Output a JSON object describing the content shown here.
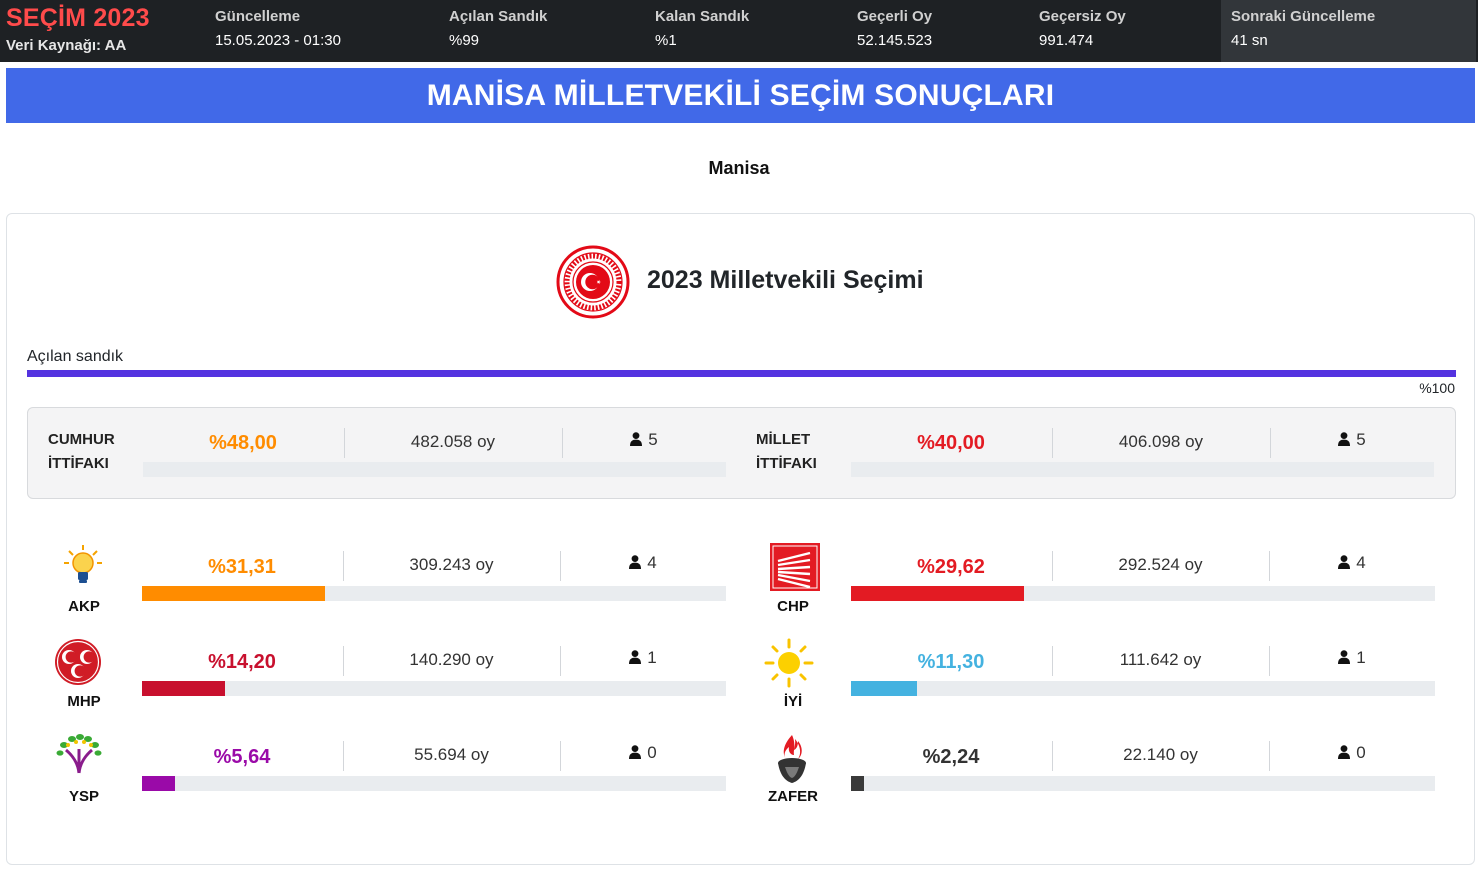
{
  "header": {
    "brand_title": "SEÇİM 2023",
    "brand_source": "Veri Kaynağı: AA",
    "stats": [
      {
        "label": "Güncelleme",
        "value": "15.05.2023 - 01:30"
      },
      {
        "label": "Açılan Sandık",
        "value": "%99"
      },
      {
        "label": "Kalan Sandık",
        "value": "%1"
      },
      {
        "label": "Geçerli Oy",
        "value": "52.145.523"
      },
      {
        "label": "Geçersiz Oy",
        "value": "991.474"
      }
    ],
    "next_update": {
      "label": "Sonraki Güncelleme",
      "value": "41 sn"
    }
  },
  "banner_title": "MANİSA MİLLETVEKİLİ SEÇİM SONUÇLARI",
  "city": "Manisa",
  "card": {
    "title": "2023 Milletvekili Seçimi",
    "progress_label": "Açılan sandık",
    "progress_value": 100,
    "progress_text": "%100"
  },
  "alliances": [
    {
      "name_line1": "CUMHUR",
      "name_line2": "İTTİFAKI",
      "pct": "%48,00",
      "votes": "482.058 oy",
      "seats": "5",
      "share": 0,
      "color": "#ff8c00"
    },
    {
      "name_line1": "MİLLET",
      "name_line2": "İTTİFAKI",
      "pct": "%40,00",
      "votes": "406.098 oy",
      "seats": "5",
      "share": 0,
      "color": "#e31b23"
    }
  ],
  "parties": [
    {
      "name": "AKP",
      "logo": "akp-bulb-icon",
      "pct": "%31,31",
      "votes": "309.243 oy",
      "seats": "4",
      "share": 31.31,
      "color": "#ff8c00"
    },
    {
      "name": "CHP",
      "logo": "chp-six-arrows-icon",
      "pct": "%29,62",
      "votes": "292.524 oy",
      "seats": "4",
      "share": 29.62,
      "color": "#e31b23"
    },
    {
      "name": "MHP",
      "logo": "mhp-three-crescents-icon",
      "pct": "%14,20",
      "votes": "140.290 oy",
      "seats": "1",
      "share": 14.2,
      "color": "#c8102e"
    },
    {
      "name": "İYİ",
      "logo": "iyi-sun-icon",
      "pct": "%11,30",
      "votes": "111.642 oy",
      "seats": "1",
      "share": 11.3,
      "color": "#44b2e0"
    },
    {
      "name": "YSP",
      "logo": "ysp-tree-icon",
      "pct": "%5,64",
      "votes": "55.694 oy",
      "seats": "0",
      "share": 5.64,
      "color": "#9a0aa8"
    },
    {
      "name": "ZAFER",
      "logo": "zafer-torch-icon",
      "pct": "%2,24",
      "votes": "22.140 oy",
      "seats": "0",
      "share": 2.24,
      "color": "#3a3a3a"
    }
  ]
}
